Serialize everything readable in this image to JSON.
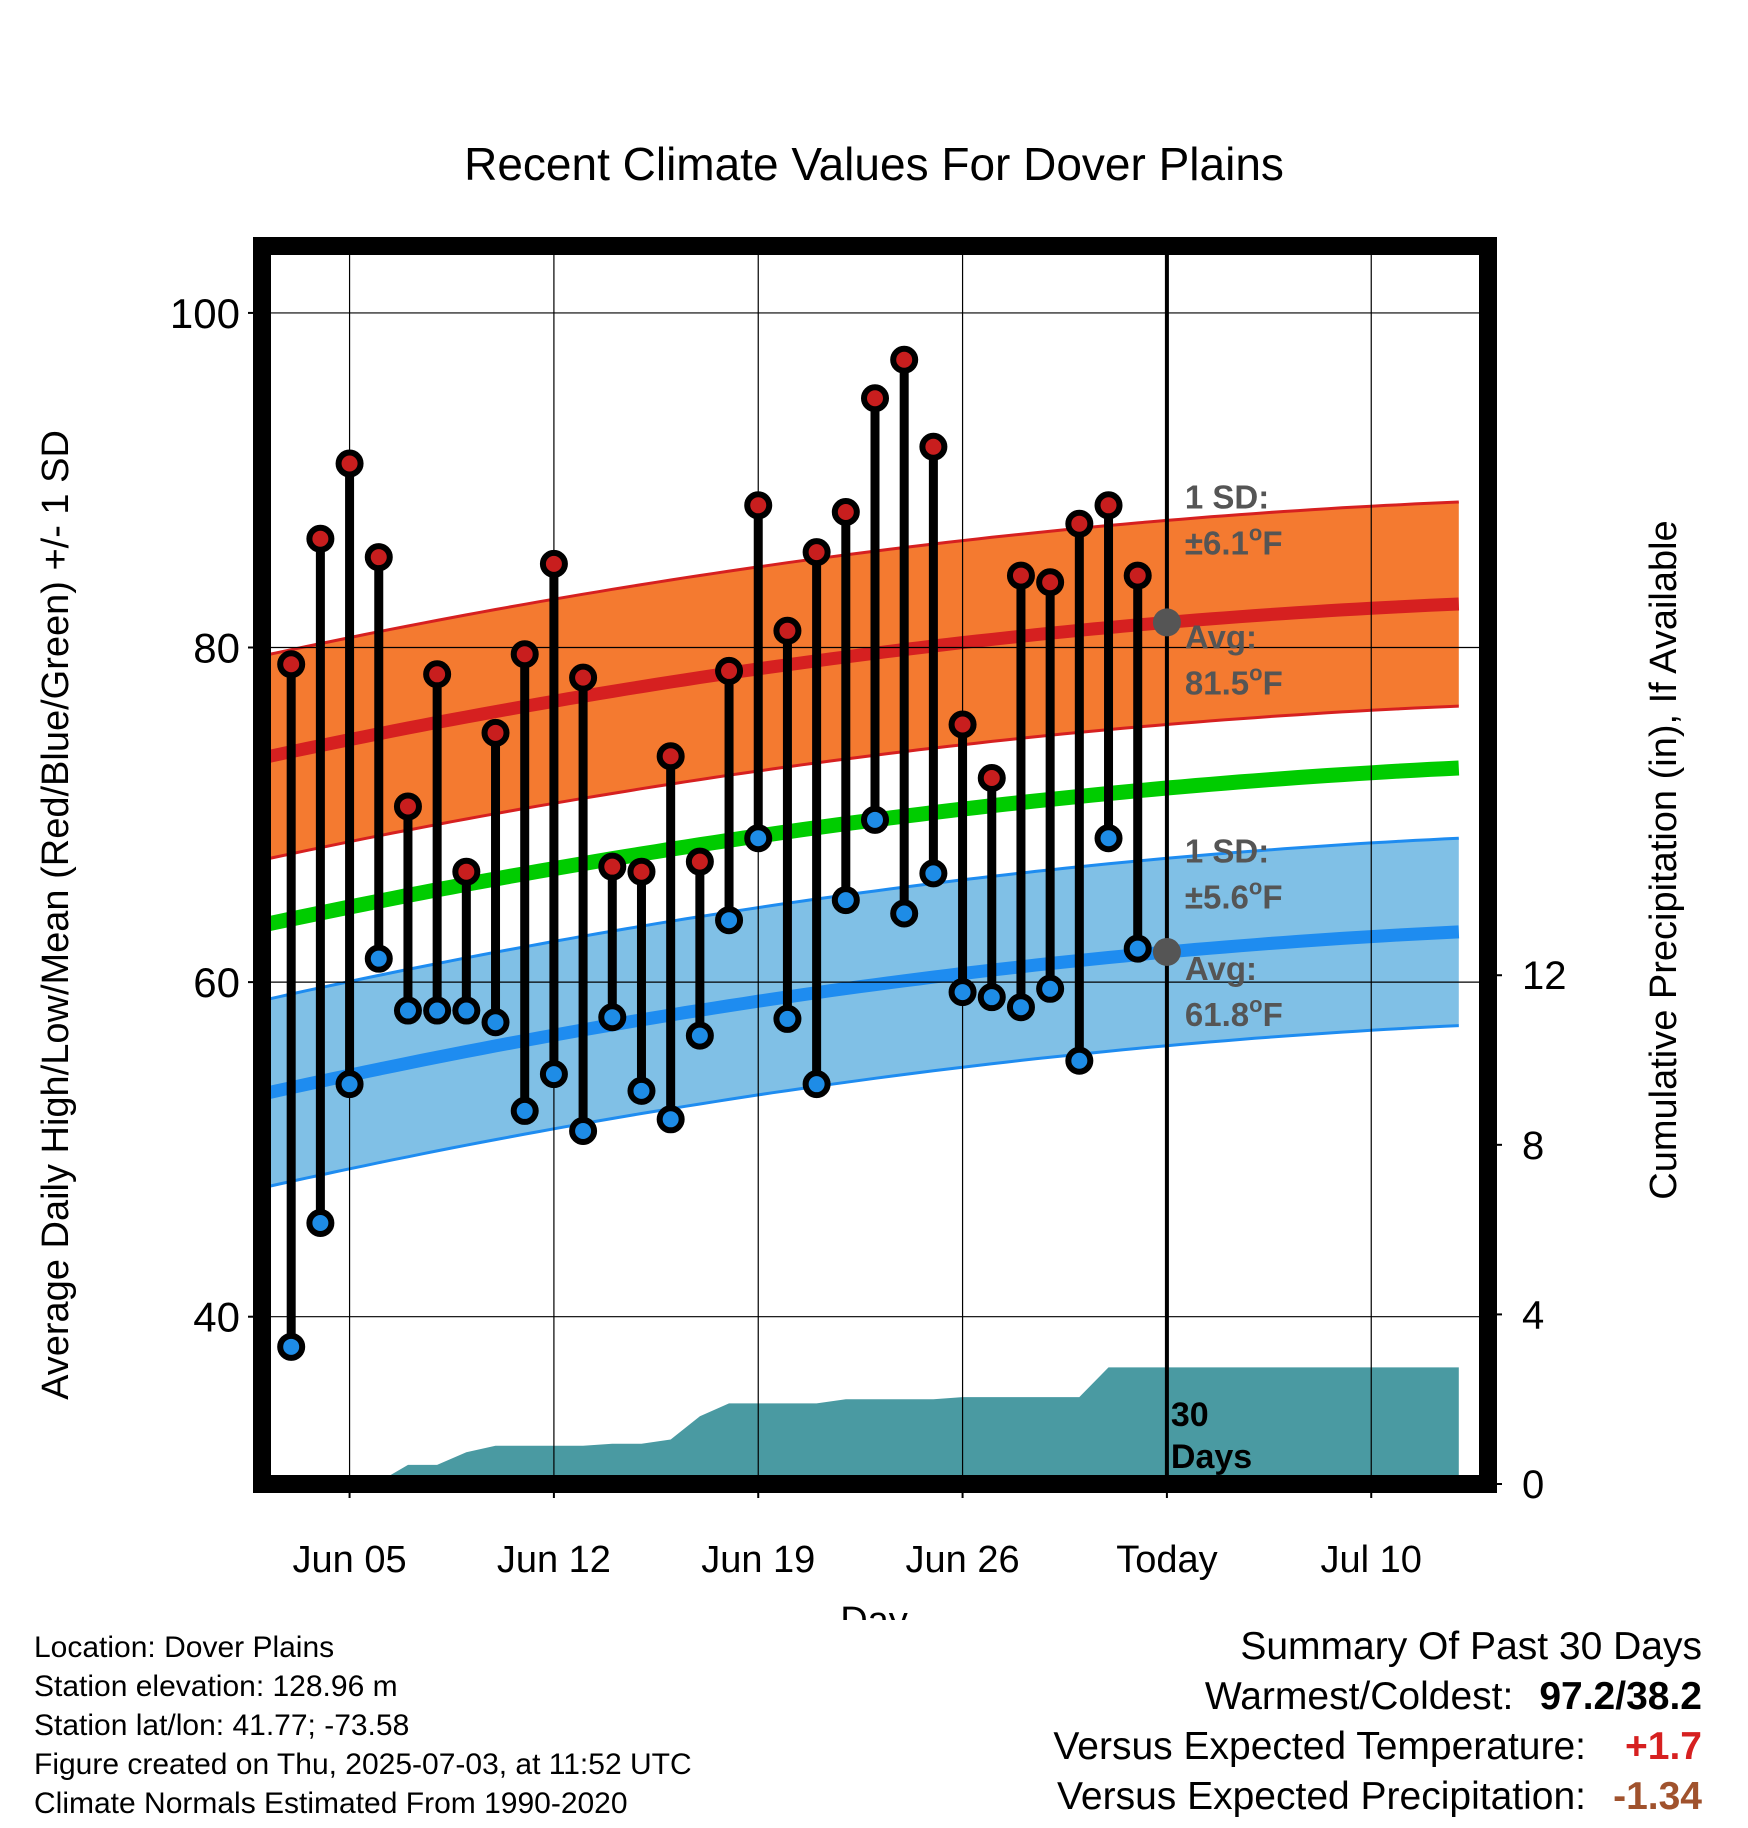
{
  "chart_data": {
    "type": "line",
    "title": "Recent Climate Values For Dover Plains",
    "xlabel": "Day",
    "ylabel": "Average Daily High/Low/Mean (Red/Blue/Green) +/- 1 SD",
    "y2label": "Cumulative Precipitation (in), If Available",
    "ylim": [
      30,
      104
    ],
    "y_ticks": [
      "40",
      "60",
      "80",
      "100"
    ],
    "y_minor_ticks": [
      50,
      70,
      90
    ],
    "y2lim": [
      0,
      29.2
    ],
    "y2_ticks": [
      "0",
      "4",
      "8",
      "12"
    ],
    "x_range": [
      "2025-06-02",
      "2025-07-14"
    ],
    "x_ticks": [
      {
        "date": "2025-06-05",
        "label": "Jun 05"
      },
      {
        "date": "2025-06-12",
        "label": "Jun 12"
      },
      {
        "date": "2025-06-19",
        "label": "Jun 19"
      },
      {
        "date": "2025-06-26",
        "label": "Jun 26"
      },
      {
        "date": "2025-07-03",
        "label": "Today"
      },
      {
        "date": "2025-07-10",
        "label": "Jul 10"
      }
    ],
    "grid": true,
    "today_line": {
      "date": "2025-07-03"
    },
    "normal_band_end": "2025-07-13",
    "normals": {
      "high_avg": {
        "start": 73.4,
        "today": 81.5,
        "end": 82.6
      },
      "high_sd": 6.1,
      "low_avg": {
        "start": 53.3,
        "today": 61.8,
        "end": 63.0
      },
      "low_sd": 5.6,
      "mean_avg": {
        "start": 63.4,
        "today": 71.6,
        "end": 72.8
      }
    },
    "series": [
      {
        "name": "High",
        "x": [
          "2025-06-03",
          "2025-06-04",
          "2025-06-05",
          "2025-06-06",
          "2025-06-07",
          "2025-06-08",
          "2025-06-09",
          "2025-06-10",
          "2025-06-11",
          "2025-06-12",
          "2025-06-13",
          "2025-06-14",
          "2025-06-15",
          "2025-06-16",
          "2025-06-17",
          "2025-06-18",
          "2025-06-19",
          "2025-06-20",
          "2025-06-21",
          "2025-06-22",
          "2025-06-23",
          "2025-06-24",
          "2025-06-25",
          "2025-06-26",
          "2025-06-27",
          "2025-06-28",
          "2025-06-29",
          "2025-06-30",
          "2025-07-01",
          "2025-07-02"
        ],
        "values": [
          79.0,
          86.5,
          91.0,
          85.4,
          70.5,
          78.4,
          66.6,
          74.9,
          79.6,
          85.0,
          78.2,
          66.9,
          66.6,
          73.5,
          67.2,
          78.6,
          88.5,
          81.0,
          85.7,
          88.1,
          94.9,
          97.2,
          92.0,
          75.4,
          72.2,
          84.3,
          83.9,
          87.4,
          88.5,
          84.3
        ]
      },
      {
        "name": "Low",
        "x": [
          "2025-06-03",
          "2025-06-04",
          "2025-06-05",
          "2025-06-06",
          "2025-06-07",
          "2025-06-08",
          "2025-06-09",
          "2025-06-10",
          "2025-06-11",
          "2025-06-12",
          "2025-06-13",
          "2025-06-14",
          "2025-06-15",
          "2025-06-16",
          "2025-06-17",
          "2025-06-18",
          "2025-06-19",
          "2025-06-20",
          "2025-06-21",
          "2025-06-22",
          "2025-06-23",
          "2025-06-24",
          "2025-06-25",
          "2025-06-26",
          "2025-06-27",
          "2025-06-28",
          "2025-06-29",
          "2025-06-30",
          "2025-07-01",
          "2025-07-02"
        ],
        "values": [
          38.2,
          45.6,
          53.9,
          61.4,
          58.3,
          58.3,
          58.3,
          57.6,
          52.3,
          54.5,
          51.1,
          57.9,
          53.5,
          51.8,
          56.8,
          63.7,
          68.6,
          57.8,
          53.9,
          64.9,
          69.7,
          64.1,
          66.5,
          59.4,
          59.1,
          58.5,
          59.6,
          55.3,
          68.6,
          62.0
        ]
      },
      {
        "name": "Cumulative Precipitation",
        "x": [
          "2025-06-02",
          "2025-06-03",
          "2025-06-04",
          "2025-06-05",
          "2025-06-06",
          "2025-06-07",
          "2025-06-08",
          "2025-06-09",
          "2025-06-10",
          "2025-06-11",
          "2025-06-12",
          "2025-06-13",
          "2025-06-14",
          "2025-06-15",
          "2025-06-16",
          "2025-06-17",
          "2025-06-18",
          "2025-06-19",
          "2025-06-20",
          "2025-06-21",
          "2025-06-22",
          "2025-06-23",
          "2025-06-24",
          "2025-06-25",
          "2025-06-26",
          "2025-06-27",
          "2025-06-28",
          "2025-06-29",
          "2025-06-30",
          "2025-07-01",
          "2025-07-02",
          "2025-07-03",
          "2025-07-13"
        ],
        "values": [
          0,
          0,
          0,
          0,
          0.05,
          0.45,
          0.45,
          0.75,
          0.9,
          0.9,
          0.9,
          0.9,
          0.95,
          0.95,
          1.05,
          1.6,
          1.9,
          1.9,
          1.9,
          1.9,
          2.0,
          2.0,
          2.0,
          2.0,
          2.05,
          2.05,
          2.05,
          2.05,
          2.05,
          2.75,
          2.75,
          2.75,
          2.75
        ]
      }
    ],
    "annotations": {
      "high_sd_label_1": "1 SD:",
      "high_sd_label_2": "±6.1",
      "high_avg_label_1": "Avg:",
      "high_avg_label_2": "81.5",
      "low_sd_label_1": "1 SD:",
      "low_sd_label_2": "±5.6",
      "low_avg_label_1": "Avg:",
      "low_avg_label_2": "61.8",
      "degree": "o",
      "unit": "F",
      "days_label_1": "30",
      "days_label_2": "Days"
    },
    "colors": {
      "high_band": "#f47a30",
      "high_band_edge": "#d62020",
      "high_avg": "#d62020",
      "low_band": "#80c0e6",
      "low_band_edge": "#1e8cf0",
      "low_avg": "#1e8cf0",
      "mean_avg": "#00cc00",
      "precip": "#4a9aa2",
      "high_dot": "#c81e1e",
      "low_dot": "#1e8ce6",
      "today_dot": "#555555",
      "annotation_text": "#555555"
    }
  },
  "footer": {
    "location": "Location: Dover Plains",
    "elevation": "Station elevation: 128.96 m",
    "latlon": "Station lat/lon: 41.77; -73.58",
    "created": "Figure created on Thu, 2025-07-03, at 11:52 UTC",
    "normals": "Climate Normals Estimated From 1990-2020"
  },
  "summary": {
    "title": "Summary Of Past 30 Days",
    "warm_cold_label": "Warmest/Coldest:",
    "warm_cold_value": "97.2/38.2",
    "temp_label": "Versus Expected Temperature:",
    "temp_value": "+1.7",
    "temp_color": "#d62020",
    "precip_label": "Versus Expected Precipitation:",
    "precip_value": "-1.34",
    "precip_color": "#a0522d"
  }
}
